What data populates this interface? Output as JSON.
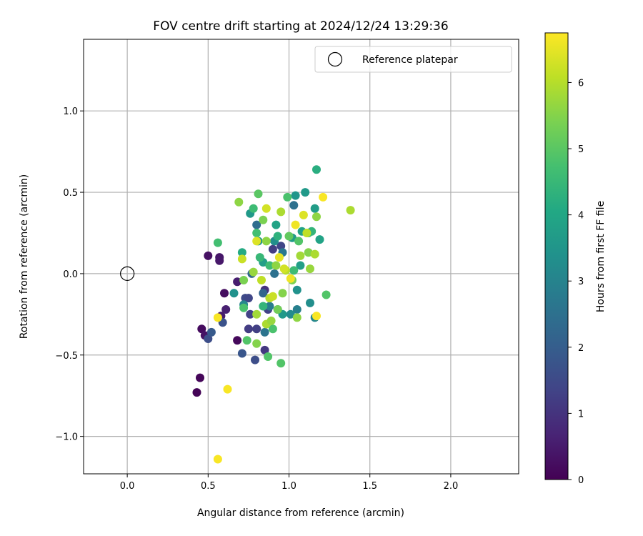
{
  "chart_data": {
    "type": "scatter",
    "title": "FOV centre drift starting at 2024/12/24 13:29:36",
    "xlabel": "Angular distance from reference (arcmin)",
    "ylabel": "Rotation from reference (arcmin)",
    "xlim": [
      -0.27,
      2.42
    ],
    "ylim": [
      -1.23,
      1.44
    ],
    "xticks": [
      0.0,
      0.5,
      1.0,
      1.5,
      2.0
    ],
    "xtick_labels": [
      "0.0",
      "0.5",
      "1.0",
      "1.5",
      "2.0"
    ],
    "yticks": [
      -1.0,
      -0.5,
      0.0,
      0.5,
      1.0
    ],
    "ytick_labels": [
      "−1.0",
      "−0.5",
      "0.0",
      "0.5",
      "1.0"
    ],
    "grid": true,
    "legend": {
      "position": "top-right",
      "label": "Reference platepar"
    },
    "reference_point": {
      "x": 0.0,
      "y": 0.0
    },
    "colorbar": {
      "label": "Hours from first FF file",
      "colormap": "viridis",
      "range": [
        0,
        6.75
      ],
      "ticks": [
        0,
        1,
        2,
        3,
        4,
        5,
        6
      ],
      "tick_labels": [
        "0",
        "1",
        "2",
        "3",
        "4",
        "5",
        "6"
      ]
    },
    "points": [
      {
        "x": 0.43,
        "y": -0.73,
        "c": 0.05
      },
      {
        "x": 0.45,
        "y": -0.64,
        "c": 0.1
      },
      {
        "x": 0.46,
        "y": -0.34,
        "c": 0.2
      },
      {
        "x": 0.48,
        "y": -0.38,
        "c": 0.35
      },
      {
        "x": 0.5,
        "y": 0.11,
        "c": 0.3
      },
      {
        "x": 0.57,
        "y": 0.1,
        "c": 0.4
      },
      {
        "x": 0.57,
        "y": 0.08,
        "c": 0.45
      },
      {
        "x": 0.58,
        "y": -0.26,
        "c": 0.5
      },
      {
        "x": 0.6,
        "y": -0.12,
        "c": 0.25
      },
      {
        "x": 0.61,
        "y": -0.22,
        "c": 0.6
      },
      {
        "x": 0.68,
        "y": -0.41,
        "c": 0.15
      },
      {
        "x": 0.68,
        "y": -0.05,
        "c": 0.55
      },
      {
        "x": 0.5,
        "y": -0.4,
        "c": 1.6
      },
      {
        "x": 0.52,
        "y": -0.36,
        "c": 1.9
      },
      {
        "x": 0.59,
        "y": -0.3,
        "c": 1.7
      },
      {
        "x": 0.71,
        "y": -0.49,
        "c": 1.8
      },
      {
        "x": 0.73,
        "y": -0.15,
        "c": 1.5
      },
      {
        "x": 0.75,
        "y": -0.15,
        "c": 1.4
      },
      {
        "x": 0.75,
        "y": -0.34,
        "c": 1.2
      },
      {
        "x": 0.76,
        "y": -0.25,
        "c": 1.3
      },
      {
        "x": 0.79,
        "y": -0.53,
        "c": 1.6
      },
      {
        "x": 0.8,
        "y": -0.34,
        "c": 1.25
      },
      {
        "x": 0.85,
        "y": -0.47,
        "c": 1.1
      },
      {
        "x": 0.85,
        "y": -0.1,
        "c": 1.0
      },
      {
        "x": 0.87,
        "y": -0.22,
        "c": 1.3
      },
      {
        "x": 0.9,
        "y": 0.15,
        "c": 1.2
      },
      {
        "x": 0.95,
        "y": 0.17,
        "c": 1.4
      },
      {
        "x": 0.77,
        "y": 0.0,
        "c": 2.3
      },
      {
        "x": 0.8,
        "y": 0.3,
        "c": 2.4
      },
      {
        "x": 0.84,
        "y": -0.12,
        "c": 2.2
      },
      {
        "x": 0.85,
        "y": -0.36,
        "c": 2.6
      },
      {
        "x": 0.88,
        "y": -0.2,
        "c": 2.8
      },
      {
        "x": 0.91,
        "y": 0.0,
        "c": 2.5
      },
      {
        "x": 0.93,
        "y": -0.22,
        "c": 2.3
      },
      {
        "x": 0.96,
        "y": 0.13,
        "c": 2.7
      },
      {
        "x": 1.03,
        "y": 0.42,
        "c": 2.5
      },
      {
        "x": 1.05,
        "y": -0.22,
        "c": 2.9
      },
      {
        "x": 0.66,
        "y": -0.12,
        "c": 3.4
      },
      {
        "x": 0.72,
        "y": -0.19,
        "c": 3.1
      },
      {
        "x": 0.76,
        "y": 0.37,
        "c": 3.6
      },
      {
        "x": 0.81,
        "y": 0.2,
        "c": 3.5
      },
      {
        "x": 0.84,
        "y": 0.07,
        "c": 3.8
      },
      {
        "x": 0.91,
        "y": 0.2,
        "c": 3.3
      },
      {
        "x": 0.92,
        "y": 0.3,
        "c": 3.9
      },
      {
        "x": 0.96,
        "y": -0.25,
        "c": 3.6
      },
      {
        "x": 1.01,
        "y": -0.25,
        "c": 3.2
      },
      {
        "x": 1.02,
        "y": 0.22,
        "c": 3.7
      },
      {
        "x": 1.04,
        "y": 0.48,
        "c": 3.5
      },
      {
        "x": 1.05,
        "y": -0.1,
        "c": 3.4
      },
      {
        "x": 1.07,
        "y": 0.05,
        "c": 3.8
      },
      {
        "x": 1.08,
        "y": 0.26,
        "c": 3.9
      },
      {
        "x": 1.1,
        "y": 0.5,
        "c": 3.6
      },
      {
        "x": 1.13,
        "y": -0.18,
        "c": 3.3
      },
      {
        "x": 1.16,
        "y": 0.4,
        "c": 3.7
      },
      {
        "x": 1.16,
        "y": -0.27,
        "c": 3.1
      },
      {
        "x": 1.17,
        "y": 0.64,
        "c": 4.2
      },
      {
        "x": 1.19,
        "y": 0.21,
        "c": 3.9
      },
      {
        "x": 0.56,
        "y": 0.19,
        "c": 4.7
      },
      {
        "x": 0.71,
        "y": 0.13,
        "c": 4.1
      },
      {
        "x": 0.72,
        "y": -0.21,
        "c": 4.8
      },
      {
        "x": 0.74,
        "y": -0.41,
        "c": 4.9
      },
      {
        "x": 0.78,
        "y": 0.4,
        "c": 4.6
      },
      {
        "x": 0.8,
        "y": 0.25,
        "c": 4.7
      },
      {
        "x": 0.81,
        "y": 0.49,
        "c": 5.0
      },
      {
        "x": 0.82,
        "y": 0.1,
        "c": 4.5
      },
      {
        "x": 0.84,
        "y": -0.2,
        "c": 4.4
      },
      {
        "x": 0.87,
        "y": -0.51,
        "c": 4.9
      },
      {
        "x": 0.88,
        "y": 0.05,
        "c": 4.6
      },
      {
        "x": 0.9,
        "y": -0.34,
        "c": 4.8
      },
      {
        "x": 0.93,
        "y": 0.23,
        "c": 4.3
      },
      {
        "x": 0.95,
        "y": -0.55,
        "c": 4.9
      },
      {
        "x": 0.99,
        "y": 0.47,
        "c": 4.8
      },
      {
        "x": 1.0,
        "y": 0.23,
        "c": 5.1
      },
      {
        "x": 1.03,
        "y": 0.02,
        "c": 4.6
      },
      {
        "x": 1.06,
        "y": 0.2,
        "c": 4.9
      },
      {
        "x": 1.12,
        "y": 0.25,
        "c": 4.7
      },
      {
        "x": 1.14,
        "y": 0.26,
        "c": 4.4
      },
      {
        "x": 1.23,
        "y": -0.13,
        "c": 4.9
      },
      {
        "x": 0.69,
        "y": 0.44,
        "c": 5.6
      },
      {
        "x": 0.72,
        "y": -0.04,
        "c": 5.4
      },
      {
        "x": 0.78,
        "y": 0.01,
        "c": 5.7
      },
      {
        "x": 0.8,
        "y": -0.25,
        "c": 5.8
      },
      {
        "x": 0.8,
        "y": -0.43,
        "c": 5.5
      },
      {
        "x": 0.84,
        "y": 0.33,
        "c": 5.4
      },
      {
        "x": 0.86,
        "y": 0.2,
        "c": 5.6
      },
      {
        "x": 0.86,
        "y": -0.31,
        "c": 5.9
      },
      {
        "x": 0.89,
        "y": -0.29,
        "c": 5.7
      },
      {
        "x": 0.92,
        "y": 0.05,
        "c": 5.6
      },
      {
        "x": 0.93,
        "y": -0.22,
        "c": 5.3
      },
      {
        "x": 0.95,
        "y": 0.38,
        "c": 5.9
      },
      {
        "x": 0.96,
        "y": -0.12,
        "c": 5.5
      },
      {
        "x": 0.98,
        "y": 0.02,
        "c": 6.0
      },
      {
        "x": 1.02,
        "y": -0.04,
        "c": 5.4
      },
      {
        "x": 1.05,
        "y": -0.27,
        "c": 5.6
      },
      {
        "x": 1.07,
        "y": 0.11,
        "c": 5.8
      },
      {
        "x": 1.12,
        "y": 0.13,
        "c": 5.5
      },
      {
        "x": 1.13,
        "y": 0.03,
        "c": 5.7
      },
      {
        "x": 1.16,
        "y": 0.12,
        "c": 5.9
      },
      {
        "x": 1.17,
        "y": 0.35,
        "c": 5.6
      },
      {
        "x": 1.38,
        "y": 0.39,
        "c": 5.9
      },
      {
        "x": 0.71,
        "y": 0.09,
        "c": 6.2
      },
      {
        "x": 0.8,
        "y": 0.2,
        "c": 6.4
      },
      {
        "x": 0.83,
        "y": -0.04,
        "c": 6.1
      },
      {
        "x": 0.86,
        "y": 0.4,
        "c": 6.3
      },
      {
        "x": 0.88,
        "y": -0.15,
        "c": 6.0
      },
      {
        "x": 0.9,
        "y": -0.14,
        "c": 6.2
      },
      {
        "x": 0.94,
        "y": 0.1,
        "c": 6.5
      },
      {
        "x": 0.97,
        "y": 0.03,
        "c": 6.3
      },
      {
        "x": 1.01,
        "y": -0.03,
        "c": 6.6
      },
      {
        "x": 1.04,
        "y": 0.3,
        "c": 6.6
      },
      {
        "x": 1.09,
        "y": 0.36,
        "c": 6.4
      },
      {
        "x": 1.11,
        "y": 0.25,
        "c": 6.1
      },
      {
        "x": 1.17,
        "y": -0.26,
        "c": 6.7
      },
      {
        "x": 1.21,
        "y": 0.47,
        "c": 6.7
      },
      {
        "x": 0.56,
        "y": -0.27,
        "c": 6.7
      },
      {
        "x": 0.62,
        "y": -0.71,
        "c": 6.7
      },
      {
        "x": 0.56,
        "y": -1.14,
        "c": 6.7
      }
    ]
  },
  "colors": {
    "grid": "#b0b0b0",
    "axes": "#000000",
    "legend_border": "#cccccc"
  }
}
